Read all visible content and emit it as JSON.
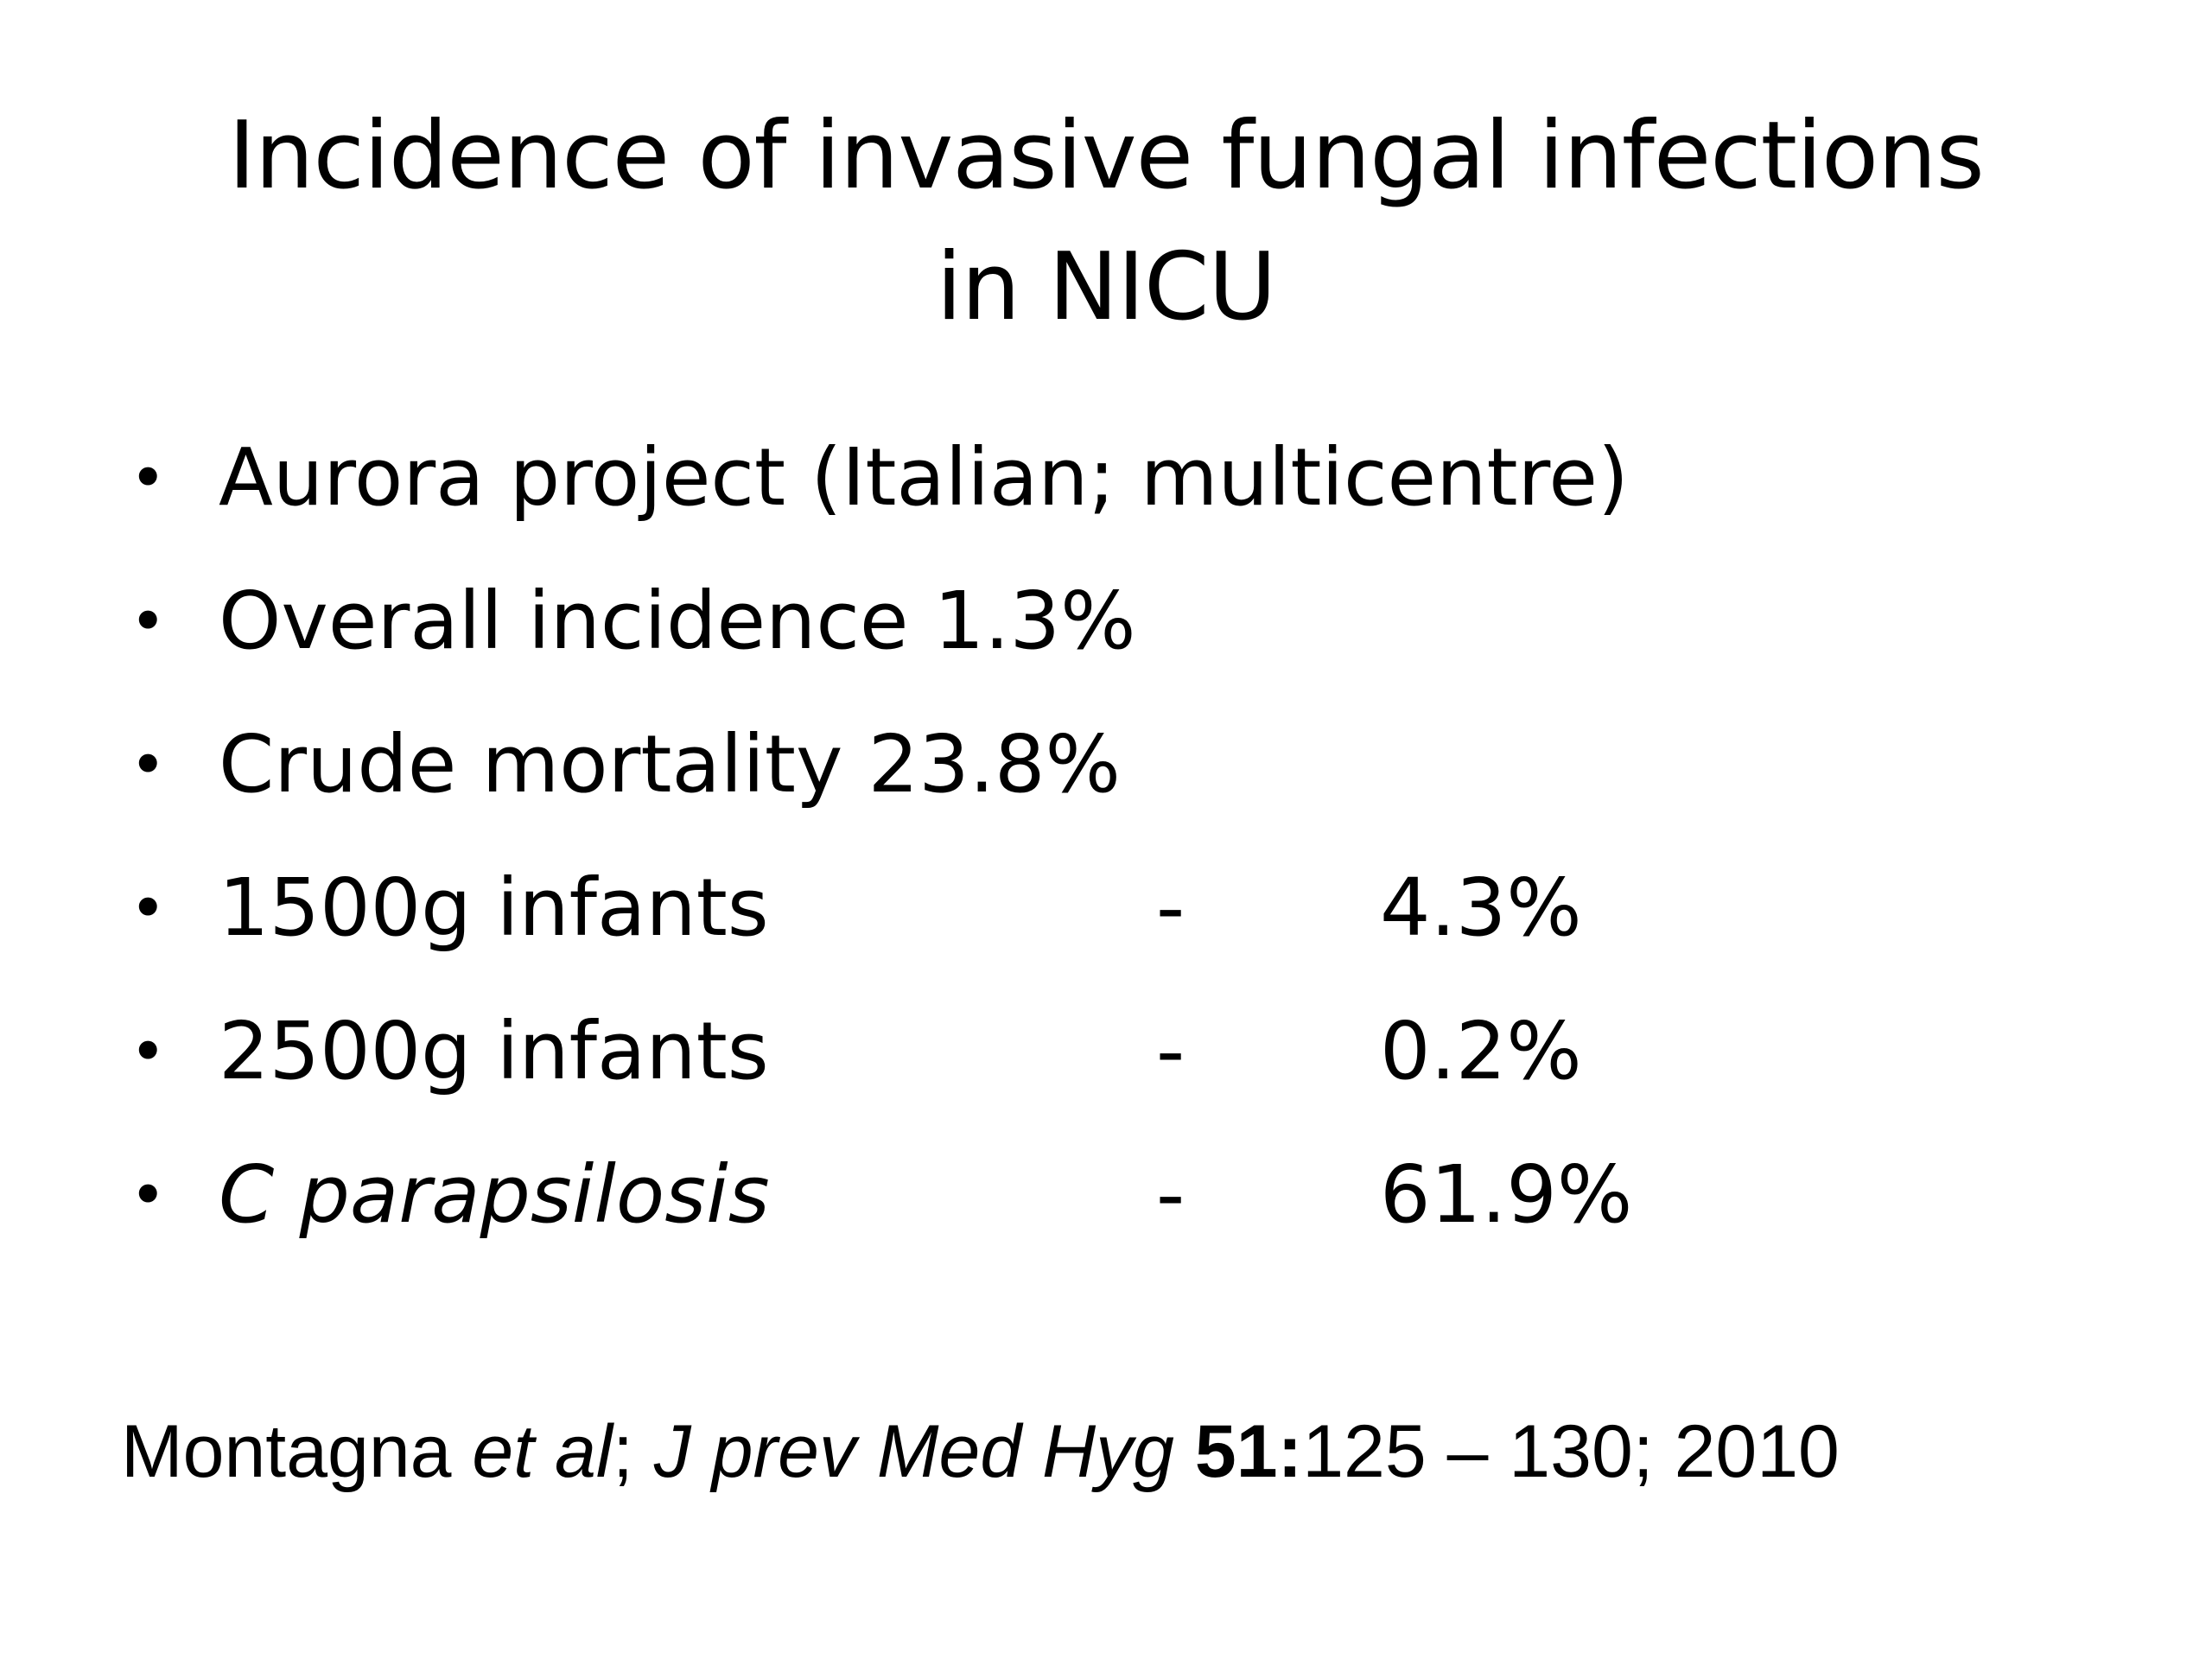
{
  "title": "Incidence of invasive fungal infections in NICU",
  "bullets": [
    {
      "label": "Aurora project (Italian; multicentre)",
      "italic": false,
      "dash": "",
      "value": ""
    },
    {
      "label": "Overall incidence 1.3%",
      "italic": false,
      "dash": "",
      "value": ""
    },
    {
      "label": "Crude mortality 23.8%",
      "italic": false,
      "dash": "",
      "value": ""
    },
    {
      "label": "1500g infants",
      "italic": false,
      "dash": "-",
      "value": "4.3%"
    },
    {
      "label": "2500g infants",
      "italic": false,
      "dash": "-",
      "value": "0.2%"
    },
    {
      "label": "C parapsilosis",
      "italic": true,
      "dash": "-",
      "value": "61.9%"
    }
  ],
  "bullet_glyph": "•",
  "citation": {
    "author": "Montagna ",
    "etal": "et al",
    "sep1": "; ",
    "journal": "J prev Med Hyg",
    "space": " ",
    "volume": "51:",
    "pages_year": "125 – 130; 2010"
  }
}
